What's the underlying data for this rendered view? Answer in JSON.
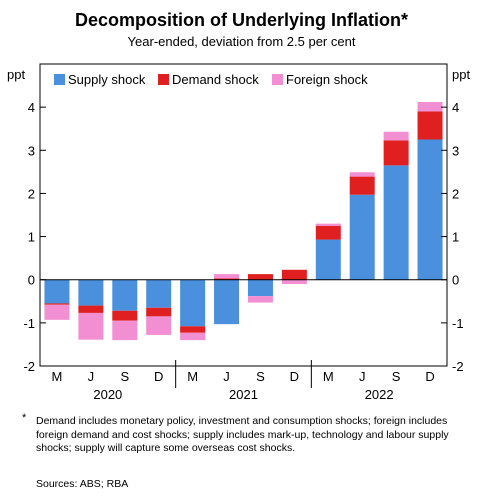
{
  "chart_data": {
    "type": "bar",
    "stacked": true,
    "title": "Decomposition of Underlying Inflation*",
    "subtitle": "Year-ended, deviation from 2.5 per cent",
    "ylabel_left": "ppt",
    "ylabel_right": "ppt",
    "ylim": [
      -2,
      5
    ],
    "yticks": [
      "-2",
      "-1",
      "0",
      "1",
      "2",
      "3",
      "4"
    ],
    "categories": [
      "M",
      "J",
      "S",
      "D",
      "M",
      "J",
      "S",
      "D",
      "M",
      "J",
      "S",
      "D"
    ],
    "year_labels": [
      {
        "label": "2020",
        "first_index": 0,
        "last_index": 3
      },
      {
        "label": "2021",
        "first_index": 4,
        "last_index": 7
      },
      {
        "label": "2022",
        "first_index": 8,
        "last_index": 11
      }
    ],
    "series": [
      {
        "name": "Supply shock",
        "color": "#4a90dd",
        "values": [
          -0.55,
          -0.6,
          -0.72,
          -0.65,
          -1.08,
          -1.03,
          -0.38,
          0.0,
          0.93,
          1.97,
          2.65,
          3.25
        ]
      },
      {
        "name": "Demand shock",
        "color": "#e02020",
        "values": [
          -0.03,
          -0.17,
          -0.23,
          -0.2,
          -0.15,
          0.03,
          0.13,
          0.23,
          0.32,
          0.42,
          0.58,
          0.65
        ]
      },
      {
        "name": "Foreign shock",
        "color": "#f28fd2",
        "values": [
          -0.35,
          -0.62,
          -0.45,
          -0.43,
          -0.17,
          0.1,
          -0.15,
          -0.1,
          0.05,
          0.1,
          0.2,
          0.22
        ]
      }
    ],
    "legend_position": "top",
    "grid": false
  },
  "footnote": {
    "marker": "*",
    "text": "Demand includes monetary policy, investment and consumption shocks; foreign includes foreign demand and cost shocks; supply includes mark-up, technology and labour supply shocks; supply will capture some overseas cost shocks."
  },
  "sources": "Sources: ABS; RBA"
}
